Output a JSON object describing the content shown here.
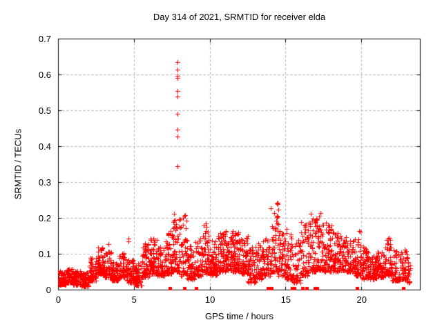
{
  "chart_data": {
    "type": "scatter",
    "title": "Day 314 of 2021, SRMTID for receiver elda",
    "xlabel": "GPS time / hours",
    "ylabel": "SRMTID / TECUs",
    "xlim": [
      0,
      23.86
    ],
    "ylim": [
      0,
      0.7
    ],
    "xticks": [
      0,
      5,
      10,
      15,
      20
    ],
    "yticks": [
      0,
      0.1,
      0.2,
      0.3,
      0.4,
      0.5,
      0.6,
      0.7
    ],
    "grid": {
      "visible": true,
      "style": "dashed"
    },
    "legend": "none",
    "marker": {
      "shape": "plus",
      "size": 7
    },
    "colors": {
      "marker": "#ff0000",
      "grid": "#a8a8a8",
      "axis": "#000000",
      "background": "#ffffff"
    },
    "rng_seed": 20211314,
    "series": [
      {
        "name": "SRMTID",
        "cloud_bins_format": [
          "hour_start",
          "hour_end",
          "value_min",
          "value_max",
          "n_points"
        ],
        "cloud_bins": [
          [
            0.0,
            0.5,
            0.015,
            0.055,
            70
          ],
          [
            0.5,
            1.0,
            0.02,
            0.06,
            70
          ],
          [
            1.0,
            1.5,
            0.015,
            0.055,
            65
          ],
          [
            1.5,
            2.0,
            0.01,
            0.05,
            60
          ],
          [
            2.0,
            2.5,
            0.025,
            0.09,
            65
          ],
          [
            2.5,
            3.0,
            0.045,
            0.125,
            70
          ],
          [
            3.0,
            3.5,
            0.035,
            0.11,
            60
          ],
          [
            3.5,
            4.0,
            0.025,
            0.085,
            60
          ],
          [
            4.0,
            4.5,
            0.035,
            0.105,
            60
          ],
          [
            4.5,
            5.0,
            0.02,
            0.085,
            55
          ],
          [
            5.0,
            5.5,
            0.012,
            0.075,
            55
          ],
          [
            5.5,
            6.0,
            0.035,
            0.13,
            60
          ],
          [
            6.0,
            6.5,
            0.045,
            0.15,
            60
          ],
          [
            6.5,
            7.0,
            0.04,
            0.125,
            55
          ],
          [
            7.0,
            7.5,
            0.045,
            0.165,
            60
          ],
          [
            7.5,
            8.0,
            0.05,
            0.21,
            65
          ],
          [
            8.0,
            8.5,
            0.04,
            0.21,
            60
          ],
          [
            8.5,
            9.0,
            0.03,
            0.125,
            55
          ],
          [
            9.0,
            9.5,
            0.04,
            0.15,
            55
          ],
          [
            9.5,
            10.0,
            0.045,
            0.185,
            60
          ],
          [
            10.0,
            10.5,
            0.04,
            0.14,
            60
          ],
          [
            10.5,
            11.0,
            0.05,
            0.165,
            65
          ],
          [
            11.0,
            11.5,
            0.055,
            0.17,
            70
          ],
          [
            11.5,
            12.0,
            0.05,
            0.165,
            70
          ],
          [
            12.0,
            12.5,
            0.045,
            0.155,
            65
          ],
          [
            12.5,
            13.0,
            0.02,
            0.12,
            55
          ],
          [
            13.0,
            13.5,
            0.03,
            0.13,
            55
          ],
          [
            13.5,
            14.0,
            0.04,
            0.155,
            55
          ],
          [
            14.0,
            14.5,
            0.05,
            0.245,
            60
          ],
          [
            14.5,
            15.0,
            0.04,
            0.18,
            55
          ],
          [
            15.0,
            15.5,
            0.03,
            0.17,
            50
          ],
          [
            15.5,
            16.0,
            0.02,
            0.14,
            50
          ],
          [
            16.0,
            16.5,
            0.04,
            0.19,
            55
          ],
          [
            16.5,
            17.0,
            0.05,
            0.215,
            60
          ],
          [
            17.0,
            17.5,
            0.055,
            0.215,
            60
          ],
          [
            17.5,
            18.0,
            0.05,
            0.19,
            60
          ],
          [
            18.0,
            18.5,
            0.05,
            0.16,
            55
          ],
          [
            18.5,
            19.0,
            0.055,
            0.155,
            55
          ],
          [
            19.0,
            19.5,
            0.05,
            0.145,
            55
          ],
          [
            19.5,
            20.0,
            0.04,
            0.17,
            55
          ],
          [
            20.0,
            20.5,
            0.03,
            0.12,
            55
          ],
          [
            20.5,
            21.0,
            0.03,
            0.1,
            55
          ],
          [
            21.0,
            21.5,
            0.035,
            0.115,
            55
          ],
          [
            21.5,
            22.0,
            0.04,
            0.145,
            55
          ],
          [
            22.0,
            22.5,
            0.025,
            0.11,
            50
          ],
          [
            22.5,
            23.0,
            0.03,
            0.115,
            50
          ],
          [
            23.0,
            23.2,
            0.02,
            0.09,
            20
          ]
        ],
        "notable_points": [
          [
            3.3,
            0.127
          ],
          [
            4.6,
            0.135
          ],
          [
            4.62,
            0.143
          ],
          [
            7.63,
            0.212
          ],
          [
            8.37,
            0.208
          ],
          [
            9.7,
            0.185
          ],
          [
            14.45,
            0.244
          ],
          [
            15.05,
            0.17
          ],
          [
            16.65,
            0.212
          ],
          [
            17.3,
            0.215
          ],
          [
            21.85,
            0.145
          ]
        ],
        "spike_points": [
          [
            7.84,
            0.635
          ],
          [
            7.85,
            0.615
          ],
          [
            7.86,
            0.598
          ],
          [
            7.84,
            0.592
          ],
          [
            7.85,
            0.555
          ],
          [
            7.87,
            0.54
          ],
          [
            7.85,
            0.492
          ],
          [
            7.84,
            0.447
          ],
          [
            7.86,
            0.428
          ],
          [
            7.85,
            0.345
          ]
        ],
        "zero_points": [
          7.35,
          8.3,
          9.1,
          13.8,
          14.05,
          15.4,
          15.55,
          16.1,
          16.35,
          16.9,
          17.05,
          19.7,
          22.75
        ]
      }
    ]
  }
}
